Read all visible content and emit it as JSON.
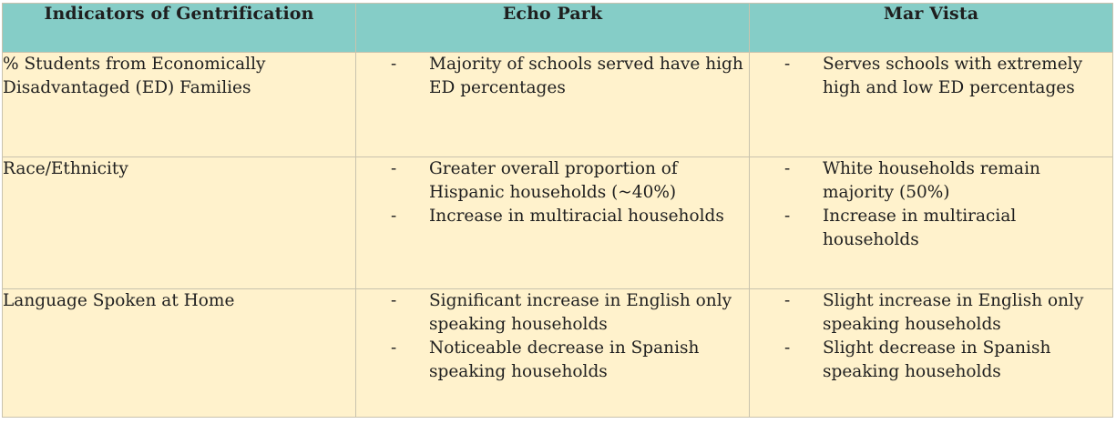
{
  "header": {
    "col1": "Indicators of Gentrification",
    "col2": "Echo Park",
    "col3": "Mar Vista"
  },
  "rows": [
    {
      "indicator": "% Students from Economically Disadvantaged (ED) Families",
      "echo_park": [
        "Majority of schools served have high ED percentages"
      ],
      "mar_vista": [
        "Serves schools with extremely high and low ED percentages"
      ]
    },
    {
      "indicator": "Race/Ethnicity",
      "echo_park": [
        "Greater overall proportion of Hispanic households (~40%)",
        "Increase in multiracial households"
      ],
      "mar_vista": [
        "White households remain majority (50%)",
        "Increase in multiracial households"
      ]
    },
    {
      "indicator": "Language Spoken at Home",
      "echo_park": [
        "Significant increase in English only speaking households",
        "Noticeable decrease in Spanish speaking households"
      ],
      "mar_vista": [
        "Slight increase in English only speaking households",
        "Slight decrease in Spanish speaking households"
      ]
    }
  ],
  "bullet_marker": "-",
  "colors": {
    "header_bg": "#85cdc7",
    "cell_bg": "#fff2cc",
    "border": "#c9c3ae"
  }
}
